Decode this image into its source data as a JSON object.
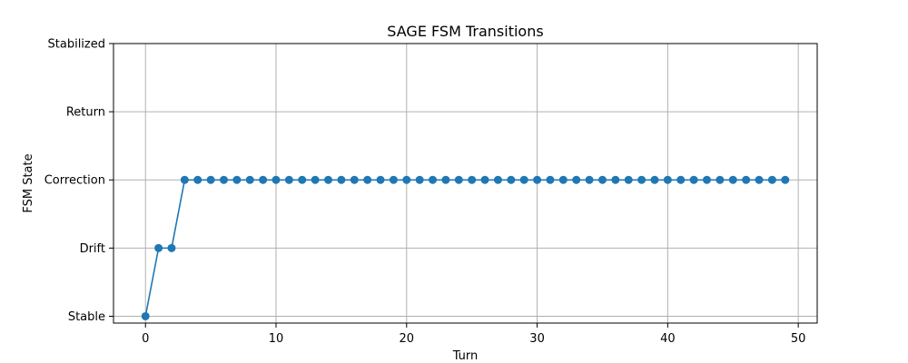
{
  "chart_data": {
    "type": "line",
    "title": "SAGE FSM Transitions",
    "xlabel": "Turn",
    "ylabel": "FSM State",
    "y_categories": [
      "Stable",
      "Drift",
      "Correction",
      "Return",
      "Stabilized"
    ],
    "x_ticks": [
      0,
      10,
      20,
      30,
      40,
      50
    ],
    "xlim": [
      -2.45,
      51.45
    ],
    "ylim": [
      -0.1,
      4
    ],
    "grid": true,
    "marker": "circle",
    "series": [
      {
        "color": "#1f77b4",
        "x": [
          0,
          1,
          2,
          3,
          4,
          5,
          6,
          7,
          8,
          9,
          10,
          11,
          12,
          13,
          14,
          15,
          16,
          17,
          18,
          19,
          20,
          21,
          22,
          23,
          24,
          25,
          26,
          27,
          28,
          29,
          30,
          31,
          32,
          33,
          34,
          35,
          36,
          37,
          38,
          39,
          40,
          41,
          42,
          43,
          44,
          45,
          46,
          47,
          48,
          49
        ],
        "y": [
          0,
          1,
          1,
          2,
          2,
          2,
          2,
          2,
          2,
          2,
          2,
          2,
          2,
          2,
          2,
          2,
          2,
          2,
          2,
          2,
          2,
          2,
          2,
          2,
          2,
          2,
          2,
          2,
          2,
          2,
          2,
          2,
          2,
          2,
          2,
          2,
          2,
          2,
          2,
          2,
          2,
          2,
          2,
          2,
          2,
          2,
          2,
          2,
          2,
          2
        ]
      }
    ]
  }
}
